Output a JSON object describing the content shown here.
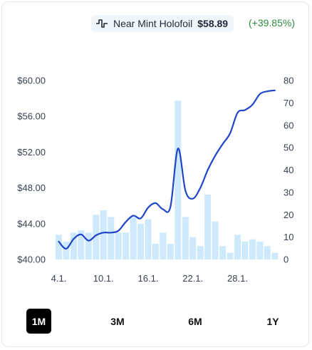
{
  "legend": {
    "icon": "price-history-icon",
    "label": "Near Mint Holofoil",
    "price": "$58.89",
    "change": "(+39.85%)",
    "line_color": "#1f46c8",
    "bar_color": "#cde9fb",
    "change_color": "#2e8b3e"
  },
  "chart_data": {
    "type": "line",
    "x_tick_labels": [
      "4.1.",
      "10.1.",
      "16.1.",
      "22.1.",
      "28.1."
    ],
    "x_tick_days": [
      4,
      10,
      16,
      22,
      28
    ],
    "x_range": [
      3,
      33.5
    ],
    "y_left": {
      "ticks": [
        "$60.00",
        "$56.00",
        "$52.00",
        "$48.00",
        "$44.00",
        "$40.00"
      ],
      "range": [
        40,
        60
      ]
    },
    "y_right": {
      "ticks": [
        "80",
        "70",
        "60",
        "50",
        "40",
        "30",
        "20",
        "10",
        "0"
      ],
      "range": [
        0,
        80
      ]
    },
    "series": [
      {
        "type": "line",
        "axis": "left",
        "x": [
          4,
          5,
          6,
          7,
          8,
          9,
          10,
          11,
          12,
          13,
          14,
          15,
          16,
          17,
          18,
          19,
          20,
          21,
          22,
          23,
          24,
          25,
          26,
          27,
          28,
          29,
          30,
          31,
          32,
          33
        ],
        "values": [
          42.0,
          41.2,
          42.3,
          42.8,
          42.1,
          42.7,
          43.0,
          43.0,
          43.2,
          44.2,
          44.9,
          44.6,
          45.8,
          46.3,
          45.6,
          45.9,
          52.4,
          47.7,
          46.8,
          48.0,
          50.0,
          51.6,
          52.9,
          54.1,
          56.4,
          56.7,
          57.3,
          58.5,
          58.8,
          58.9
        ]
      },
      {
        "type": "bar",
        "axis": "right",
        "x": [
          4,
          5,
          6,
          7,
          8,
          9,
          10,
          11,
          12,
          13,
          14,
          15,
          16,
          17,
          18,
          19,
          20,
          21,
          22,
          23,
          24,
          25,
          26,
          27,
          28,
          29,
          30,
          31,
          32,
          33
        ],
        "values": [
          11,
          8,
          12,
          13,
          12,
          20,
          22,
          19,
          12,
          12,
          19,
          16,
          18,
          7,
          12,
          7,
          71,
          19,
          10,
          6,
          29,
          17,
          6,
          3,
          11,
          8,
          9,
          8,
          6,
          3
        ]
      }
    ],
    "grid": false,
    "legend": "top-right"
  },
  "range_selector": {
    "options": [
      "1M",
      "3M",
      "6M",
      "1Y"
    ],
    "active": "1M"
  }
}
